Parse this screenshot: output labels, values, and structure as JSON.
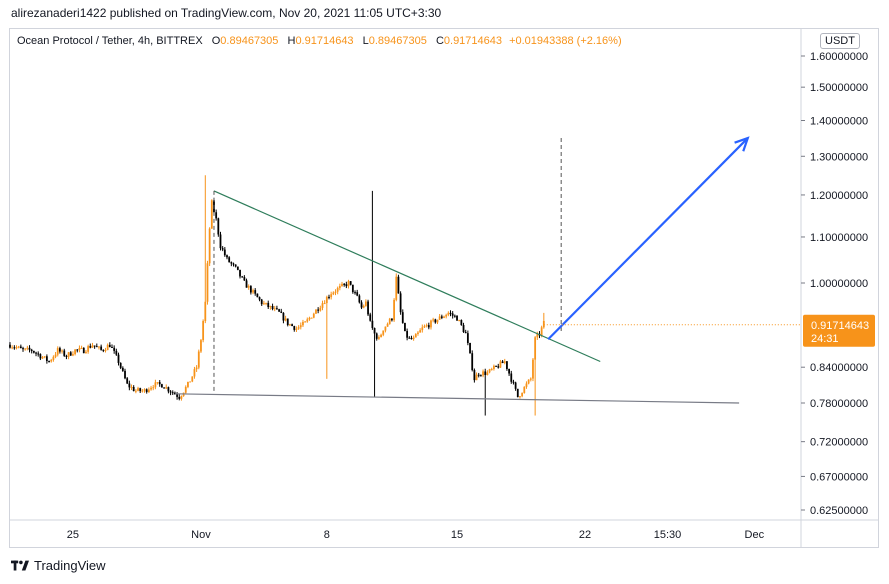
{
  "header": {
    "text": "alirezanaderi1422 published on TradingView.com, Nov 20, 2021 11:05 UTC+3:30"
  },
  "legend": {
    "symbol": "Ocean Protocol / Tether, 4h, BITTREX",
    "o_label": "O",
    "o": "0.89467305",
    "h_label": "H",
    "h": "0.91714643",
    "l_label": "L",
    "l": "0.89467305",
    "c_label": "C",
    "c": "0.91714643",
    "change": "+0.01943388 (+2.16%)"
  },
  "currency_button": "USDT",
  "price_tag": {
    "price": "0.91714643",
    "countdown": "24:31"
  },
  "footer": {
    "brand": "TradingView"
  },
  "colors": {
    "up": "#f7931a",
    "down": "#000000",
    "trend_upper": "#2e7d5b",
    "trend_lower": "#787b86",
    "projection": "#2962ff"
  },
  "chart_data": {
    "type": "candlestick",
    "symbol": "OCEAN/USDT",
    "interval": "4h",
    "exchange": "BITTREX",
    "y_scale": "log",
    "y_ticks": [
      "1.60000000",
      "1.50000000",
      "1.40000000",
      "1.30000000",
      "1.20000000",
      "1.10000000",
      "1.00000000",
      "0.84000000",
      "0.78000000",
      "0.72000000",
      "0.67000000",
      "0.62500000"
    ],
    "y_tick_values": [
      1.6,
      1.5,
      1.4,
      1.3,
      1.2,
      1.1,
      1.0,
      0.84,
      0.78,
      0.72,
      0.67,
      0.625
    ],
    "x_ticks": [
      "25",
      "Nov",
      "8",
      "15",
      "22",
      "15:30",
      "Dec"
    ],
    "close_path": [
      {
        "t": 0,
        "p": 0.88
      },
      {
        "t": 6,
        "p": 0.87
      },
      {
        "t": 10,
        "p": 0.87
      },
      {
        "t": 14,
        "p": 0.86
      },
      {
        "t": 18,
        "p": 0.85
      },
      {
        "t": 22,
        "p": 0.87
      },
      {
        "t": 26,
        "p": 0.86
      },
      {
        "t": 30,
        "p": 0.87
      },
      {
        "t": 34,
        "p": 0.87
      },
      {
        "t": 38,
        "p": 0.88
      },
      {
        "t": 42,
        "p": 0.87
      },
      {
        "t": 46,
        "p": 0.88
      },
      {
        "t": 50,
        "p": 0.85
      },
      {
        "t": 54,
        "p": 0.81
      },
      {
        "t": 58,
        "p": 0.8
      },
      {
        "t": 62,
        "p": 0.8
      },
      {
        "t": 66,
        "p": 0.81
      },
      {
        "t": 70,
        "p": 0.81
      },
      {
        "t": 74,
        "p": 0.8
      },
      {
        "t": 78,
        "p": 0.79
      },
      {
        "t": 82,
        "p": 0.81
      },
      {
        "t": 86,
        "p": 0.84
      },
      {
        "t": 88,
        "p": 0.89
      },
      {
        "t": 90,
        "p": 0.96
      },
      {
        "t": 92,
        "p": 1.12
      },
      {
        "t": 93,
        "p": 1.18
      },
      {
        "t": 95,
        "p": 1.14
      },
      {
        "t": 97,
        "p": 1.08
      },
      {
        "t": 100,
        "p": 1.05
      },
      {
        "t": 104,
        "p": 1.03
      },
      {
        "t": 108,
        "p": 1.0
      },
      {
        "t": 112,
        "p": 0.98
      },
      {
        "t": 116,
        "p": 0.96
      },
      {
        "t": 120,
        "p": 0.95
      },
      {
        "t": 124,
        "p": 0.94
      },
      {
        "t": 128,
        "p": 0.92
      },
      {
        "t": 132,
        "p": 0.91
      },
      {
        "t": 136,
        "p": 0.92
      },
      {
        "t": 140,
        "p": 0.94
      },
      {
        "t": 144,
        "p": 0.96
      },
      {
        "t": 148,
        "p": 0.98
      },
      {
        "t": 152,
        "p": 0.99
      },
      {
        "t": 156,
        "p": 1.0
      },
      {
        "t": 160,
        "p": 0.97
      },
      {
        "t": 162,
        "p": 0.95
      },
      {
        "t": 164,
        "p": 0.96
      },
      {
        "t": 166,
        "p": 0.92
      },
      {
        "t": 168,
        "p": 0.9
      },
      {
        "t": 170,
        "p": 0.89
      },
      {
        "t": 172,
        "p": 0.91
      },
      {
        "t": 176,
        "p": 0.93
      },
      {
        "t": 178,
        "p": 1.01
      },
      {
        "t": 180,
        "p": 0.94
      },
      {
        "t": 182,
        "p": 0.9
      },
      {
        "t": 184,
        "p": 0.89
      },
      {
        "t": 186,
        "p": 0.89
      },
      {
        "t": 190,
        "p": 0.91
      },
      {
        "t": 194,
        "p": 0.92
      },
      {
        "t": 198,
        "p": 0.93
      },
      {
        "t": 202,
        "p": 0.94
      },
      {
        "t": 206,
        "p": 0.93
      },
      {
        "t": 210,
        "p": 0.9
      },
      {
        "t": 212,
        "p": 0.86
      },
      {
        "t": 214,
        "p": 0.82
      },
      {
        "t": 216,
        "p": 0.83
      },
      {
        "t": 220,
        "p": 0.83
      },
      {
        "t": 224,
        "p": 0.84
      },
      {
        "t": 228,
        "p": 0.85
      },
      {
        "t": 232,
        "p": 0.81
      },
      {
        "t": 234,
        "p": 0.79
      },
      {
        "t": 236,
        "p": 0.8
      },
      {
        "t": 238,
        "p": 0.81
      },
      {
        "t": 240,
        "p": 0.82
      },
      {
        "t": 242,
        "p": 0.89
      },
      {
        "t": 244,
        "p": 0.9
      },
      {
        "t": 246,
        "p": 0.92
      }
    ],
    "last": {
      "open": 0.89467305,
      "high": 0.91714643,
      "low": 0.89467305,
      "close": 0.91714643,
      "change": 0.01943388,
      "change_pct": 2.16
    },
    "drawings": {
      "upper_trendline": [
        {
          "t": 94,
          "p": 1.21
        },
        {
          "t": 272,
          "p": 0.85
        }
      ],
      "lower_trendline": [
        {
          "t": 76,
          "p": 0.795
        },
        {
          "t": 336,
          "p": 0.78
        }
      ],
      "vertical_dashed_1": {
        "t": 94,
        "from": 1.21,
        "to": 0.795
      },
      "vertical_dashed_2": {
        "t": 254,
        "from": 1.35,
        "to": 0.9
      },
      "projection_arrow": [
        {
          "t": 248,
          "p": 0.89
        },
        {
          "t": 340,
          "p": 1.35
        }
      ]
    }
  }
}
